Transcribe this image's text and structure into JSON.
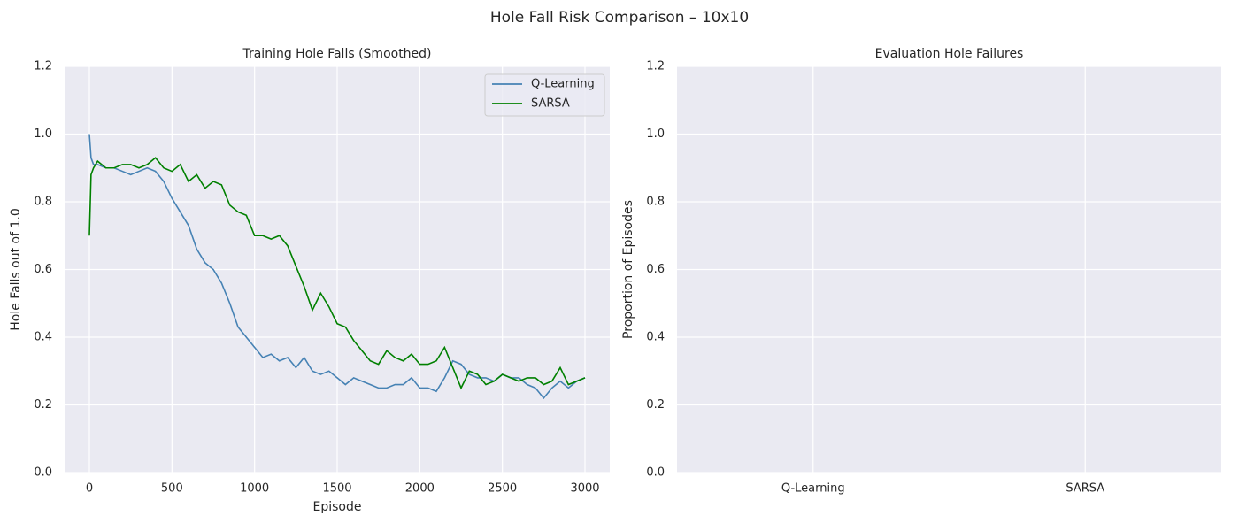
{
  "title": "Hole Fall Risk Comparison – 10x10",
  "chart_data": [
    {
      "type": "line",
      "title": "Training Hole Falls (Smoothed)",
      "xlabel": "Episode",
      "ylabel": "Hole Falls out of 1.0",
      "x": [
        0,
        10,
        25,
        50,
        100,
        150,
        200,
        250,
        300,
        350,
        400,
        450,
        500,
        550,
        600,
        650,
        700,
        750,
        800,
        850,
        900,
        950,
        1000,
        1050,
        1100,
        1150,
        1200,
        1250,
        1300,
        1350,
        1400,
        1450,
        1500,
        1550,
        1600,
        1650,
        1700,
        1750,
        1800,
        1850,
        1900,
        1950,
        2000,
        2050,
        2100,
        2150,
        2200,
        2250,
        2300,
        2350,
        2400,
        2450,
        2500,
        2550,
        2600,
        2650,
        2700,
        2750,
        2800,
        2850,
        2900,
        2950,
        3000
      ],
      "series": [
        {
          "name": "Q-Learning",
          "color": "#4682b4",
          "values": [
            1.0,
            0.93,
            0.91,
            0.91,
            0.9,
            0.9,
            0.89,
            0.88,
            0.89,
            0.9,
            0.89,
            0.86,
            0.81,
            0.77,
            0.73,
            0.66,
            0.62,
            0.6,
            0.56,
            0.5,
            0.43,
            0.4,
            0.37,
            0.34,
            0.35,
            0.33,
            0.34,
            0.31,
            0.34,
            0.3,
            0.29,
            0.3,
            0.28,
            0.26,
            0.28,
            0.27,
            0.26,
            0.25,
            0.25,
            0.26,
            0.26,
            0.28,
            0.25,
            0.25,
            0.24,
            0.28,
            0.33,
            0.32,
            0.29,
            0.28,
            0.28,
            0.27,
            0.29,
            0.28,
            0.28,
            0.26,
            0.25,
            0.22,
            0.25,
            0.27,
            0.25,
            0.27,
            0.28
          ]
        },
        {
          "name": "SARSA",
          "color": "#008000",
          "values": [
            0.7,
            0.88,
            0.9,
            0.92,
            0.9,
            0.9,
            0.91,
            0.91,
            0.9,
            0.91,
            0.93,
            0.9,
            0.89,
            0.91,
            0.86,
            0.88,
            0.84,
            0.86,
            0.85,
            0.79,
            0.77,
            0.76,
            0.7,
            0.7,
            0.69,
            0.7,
            0.67,
            0.61,
            0.55,
            0.48,
            0.53,
            0.49,
            0.44,
            0.43,
            0.39,
            0.36,
            0.33,
            0.32,
            0.36,
            0.34,
            0.33,
            0.35,
            0.32,
            0.32,
            0.33,
            0.37,
            0.31,
            0.25,
            0.3,
            0.29,
            0.26,
            0.27,
            0.29,
            0.28,
            0.27,
            0.28,
            0.28,
            0.26,
            0.27,
            0.31,
            0.26,
            0.27,
            0.28
          ]
        }
      ],
      "xlim": [
        -150,
        3150
      ],
      "xticks": [
        0,
        500,
        1000,
        1500,
        2000,
        2500,
        3000
      ],
      "ylim": [
        0,
        1.2
      ],
      "yticks": [
        {
          "value": 0,
          "label": "0.0"
        },
        0.2,
        0.4,
        0.6,
        0.8,
        {
          "value": 1,
          "label": "1.0"
        },
        1.2
      ],
      "grid": true,
      "legend": "upper right"
    },
    {
      "type": "bar",
      "title": "Evaluation Hole Failures",
      "ylabel": "Proportion of Episodes",
      "categories": [
        "Q-Learning",
        "SARSA"
      ],
      "values": [
        0,
        0
      ],
      "ylim": [
        0,
        1.2
      ],
      "yticks": [
        {
          "value": 0,
          "label": "0.0"
        },
        0.2,
        0.4,
        0.6,
        0.8,
        {
          "value": 1,
          "label": "1.0"
        },
        1.2
      ],
      "grid": true
    }
  ]
}
